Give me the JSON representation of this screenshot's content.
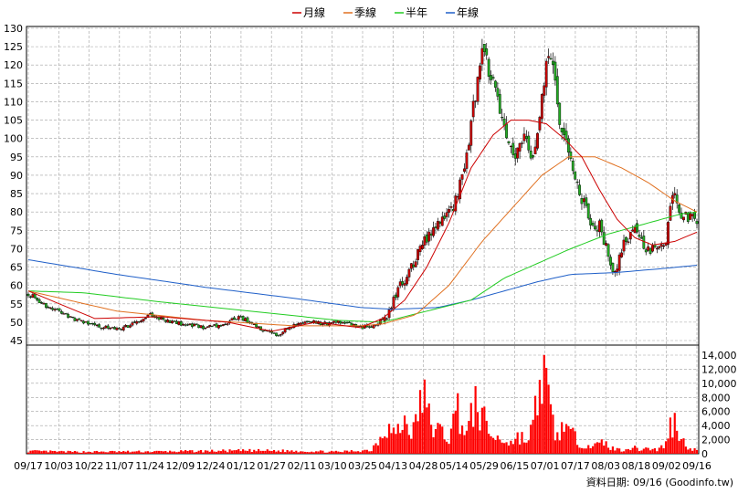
{
  "chart_data": {
    "type": "candlestick",
    "legend": [
      {
        "label": "月線",
        "color": "#cc0000"
      },
      {
        "label": "季線",
        "color": "#e07020"
      },
      {
        "label": "半年",
        "color": "#22cc22"
      },
      {
        "label": "年線",
        "color": "#1f5fc8"
      }
    ],
    "price_axis": {
      "min": 45,
      "max": 130,
      "ticks": [
        45,
        50,
        55,
        60,
        65,
        70,
        75,
        80,
        85,
        90,
        95,
        100,
        105,
        110,
        115,
        120,
        125,
        130
      ]
    },
    "volume_axis": {
      "min": 0,
      "max": 14000,
      "ticks": [
        "0",
        "2,000",
        "4,000",
        "6,000",
        "8,000",
        "10,000",
        "12,000",
        "14,000"
      ],
      "tick_values": [
        0,
        2000,
        4000,
        6000,
        8000,
        10000,
        12000,
        14000
      ]
    },
    "x_ticks": [
      "09/17",
      "10/03",
      "10/22",
      "11/07",
      "11/24",
      "12/09",
      "12/24",
      "01/12",
      "01/27",
      "02/11",
      "03/10",
      "03/25",
      "04/13",
      "04/28",
      "05/14",
      "05/29",
      "06/15",
      "07/01",
      "07/17",
      "08/03",
      "08/18",
      "09/02",
      "09/16"
    ],
    "price_anchors": [
      [
        0,
        57.5
      ],
      [
        3,
        57
      ],
      [
        6,
        55
      ],
      [
        10,
        54
      ],
      [
        15,
        52.5
      ],
      [
        20,
        51
      ],
      [
        25,
        50
      ],
      [
        30,
        49
      ],
      [
        35,
        48.5
      ],
      [
        40,
        48
      ],
      [
        45,
        49
      ],
      [
        50,
        50.5
      ],
      [
        55,
        52
      ],
      [
        60,
        51
      ],
      [
        65,
        50
      ],
      [
        70,
        49.5
      ],
      [
        75,
        49
      ],
      [
        80,
        48.5
      ],
      [
        85,
        49
      ],
      [
        90,
        50
      ],
      [
        95,
        51.5
      ],
      [
        100,
        50
      ],
      [
        105,
        48
      ],
      [
        110,
        47
      ],
      [
        113,
        46.5
      ],
      [
        116,
        48
      ],
      [
        120,
        49
      ],
      [
        125,
        50
      ],
      [
        130,
        50
      ],
      [
        135,
        49.5
      ],
      [
        140,
        50
      ],
      [
        145,
        49.5
      ],
      [
        150,
        48.5
      ],
      [
        155,
        49
      ],
      [
        158,
        50
      ],
      [
        161,
        51
      ],
      [
        163,
        53
      ],
      [
        165,
        56
      ],
      [
        168,
        60
      ],
      [
        171,
        62
      ],
      [
        174,
        66
      ],
      [
        177,
        70
      ],
      [
        180,
        73
      ],
      [
        183,
        75
      ],
      [
        186,
        78
      ],
      [
        189,
        80
      ],
      [
        192,
        82
      ],
      [
        194,
        86
      ],
      [
        196,
        90
      ],
      [
        198,
        96
      ],
      [
        200,
        104
      ],
      [
        202,
        112
      ],
      [
        204,
        120
      ],
      [
        206,
        126
      ],
      [
        208,
        118
      ],
      [
        210,
        114
      ],
      [
        212,
        110
      ],
      [
        214,
        106
      ],
      [
        216,
        100
      ],
      [
        218,
        96
      ],
      [
        220,
        94
      ],
      [
        222,
        97
      ],
      [
        224,
        100
      ],
      [
        226,
        96
      ],
      [
        228,
        94
      ],
      [
        230,
        100
      ],
      [
        232,
        110
      ],
      [
        234,
        120
      ],
      [
        236,
        124
      ],
      [
        238,
        114
      ],
      [
        240,
        106
      ],
      [
        242,
        100
      ],
      [
        244,
        97
      ],
      [
        246,
        92
      ],
      [
        248,
        88
      ],
      [
        250,
        84
      ],
      [
        252,
        80
      ],
      [
        254,
        76
      ],
      [
        256,
        74
      ],
      [
        258,
        76
      ],
      [
        260,
        72
      ],
      [
        262,
        68
      ],
      [
        264,
        63
      ],
      [
        266,
        65
      ],
      [
        268,
        70
      ],
      [
        270,
        73
      ],
      [
        272,
        74
      ],
      [
        274,
        75
      ],
      [
        276,
        73
      ],
      [
        278,
        71
      ],
      [
        280,
        70
      ],
      [
        282,
        70
      ],
      [
        284,
        71
      ],
      [
        286,
        71.5
      ],
      [
        288,
        72.5
      ],
      [
        290,
        80
      ],
      [
        292,
        86
      ],
      [
        294,
        81
      ],
      [
        296,
        79
      ],
      [
        298,
        78
      ],
      [
        300,
        79
      ],
      [
        302,
        78.5
      ]
    ],
    "ma_monthly": [
      [
        0,
        58.5
      ],
      [
        30,
        51
      ],
      [
        60,
        51.5
      ],
      [
        90,
        50
      ],
      [
        110,
        47.5
      ],
      [
        130,
        50
      ],
      [
        150,
        48.5
      ],
      [
        160,
        51
      ],
      [
        170,
        56
      ],
      [
        180,
        65
      ],
      [
        190,
        77
      ],
      [
        200,
        92
      ],
      [
        210,
        101
      ],
      [
        218,
        105
      ],
      [
        226,
        105
      ],
      [
        234,
        104
      ],
      [
        242,
        100
      ],
      [
        250,
        95
      ],
      [
        258,
        86
      ],
      [
        266,
        78
      ],
      [
        274,
        73
      ],
      [
        282,
        71
      ],
      [
        292,
        72
      ],
      [
        302,
        74.5
      ]
    ],
    "ma_quarterly": [
      [
        0,
        58.5
      ],
      [
        40,
        53
      ],
      [
        80,
        50.5
      ],
      [
        120,
        49
      ],
      [
        150,
        49
      ],
      [
        160,
        49.5
      ],
      [
        175,
        52
      ],
      [
        190,
        60
      ],
      [
        205,
        72
      ],
      [
        220,
        82
      ],
      [
        232,
        90
      ],
      [
        244,
        95
      ],
      [
        256,
        95
      ],
      [
        268,
        92
      ],
      [
        280,
        88
      ],
      [
        292,
        83
      ],
      [
        302,
        80
      ]
    ],
    "ma_halfyear": [
      [
        0,
        58.5
      ],
      [
        25,
        58
      ],
      [
        60,
        55.5
      ],
      [
        100,
        53
      ],
      [
        140,
        50.5
      ],
      [
        160,
        50
      ],
      [
        180,
        53
      ],
      [
        200,
        56
      ],
      [
        215,
        62
      ],
      [
        230,
        66
      ],
      [
        245,
        70
      ],
      [
        262,
        74
      ],
      [
        280,
        77
      ],
      [
        295,
        79.5
      ],
      [
        302,
        80
      ]
    ],
    "ma_yearly": [
      [
        0,
        67
      ],
      [
        40,
        63
      ],
      [
        80,
        59.5
      ],
      [
        120,
        56.5
      ],
      [
        150,
        54
      ],
      [
        165,
        53.5
      ],
      [
        185,
        54
      ],
      [
        200,
        56
      ],
      [
        215,
        58.5
      ],
      [
        230,
        61
      ],
      [
        245,
        63
      ],
      [
        265,
        63.5
      ],
      [
        285,
        64.5
      ],
      [
        302,
        65.5
      ]
    ],
    "volume_anchors": [
      [
        0,
        400
      ],
      [
        20,
        300
      ],
      [
        60,
        350
      ],
      [
        100,
        500
      ],
      [
        120,
        450
      ],
      [
        140,
        300
      ],
      [
        155,
        600
      ],
      [
        162,
        4500
      ],
      [
        166,
        3000
      ],
      [
        170,
        5000
      ],
      [
        174,
        3500
      ],
      [
        178,
        9500
      ],
      [
        182,
        4500
      ],
      [
        186,
        3500
      ],
      [
        190,
        2500
      ],
      [
        194,
        7200
      ],
      [
        198,
        3000
      ],
      [
        202,
        8000
      ],
      [
        206,
        5000
      ],
      [
        210,
        2500
      ],
      [
        214,
        2200
      ],
      [
        218,
        1800
      ],
      [
        222,
        2800
      ],
      [
        226,
        1800
      ],
      [
        230,
        8000
      ],
      [
        232,
        13800
      ],
      [
        234,
        10000
      ],
      [
        236,
        6000
      ],
      [
        238,
        3500
      ],
      [
        240,
        2200
      ],
      [
        242,
        6000
      ],
      [
        244,
        3500
      ],
      [
        248,
        2000
      ],
      [
        252,
        1500
      ],
      [
        256,
        1200
      ],
      [
        260,
        1800
      ],
      [
        264,
        800
      ],
      [
        268,
        600
      ],
      [
        272,
        1000
      ],
      [
        276,
        700
      ],
      [
        280,
        900
      ],
      [
        284,
        600
      ],
      [
        288,
        1500
      ],
      [
        290,
        4500
      ],
      [
        292,
        4800
      ],
      [
        294,
        3800
      ],
      [
        296,
        1800
      ],
      [
        298,
        1200
      ],
      [
        302,
        500
      ]
    ]
  },
  "footer": {
    "date_label": "資料日期: 09/16 (Goodinfo.tw)"
  }
}
